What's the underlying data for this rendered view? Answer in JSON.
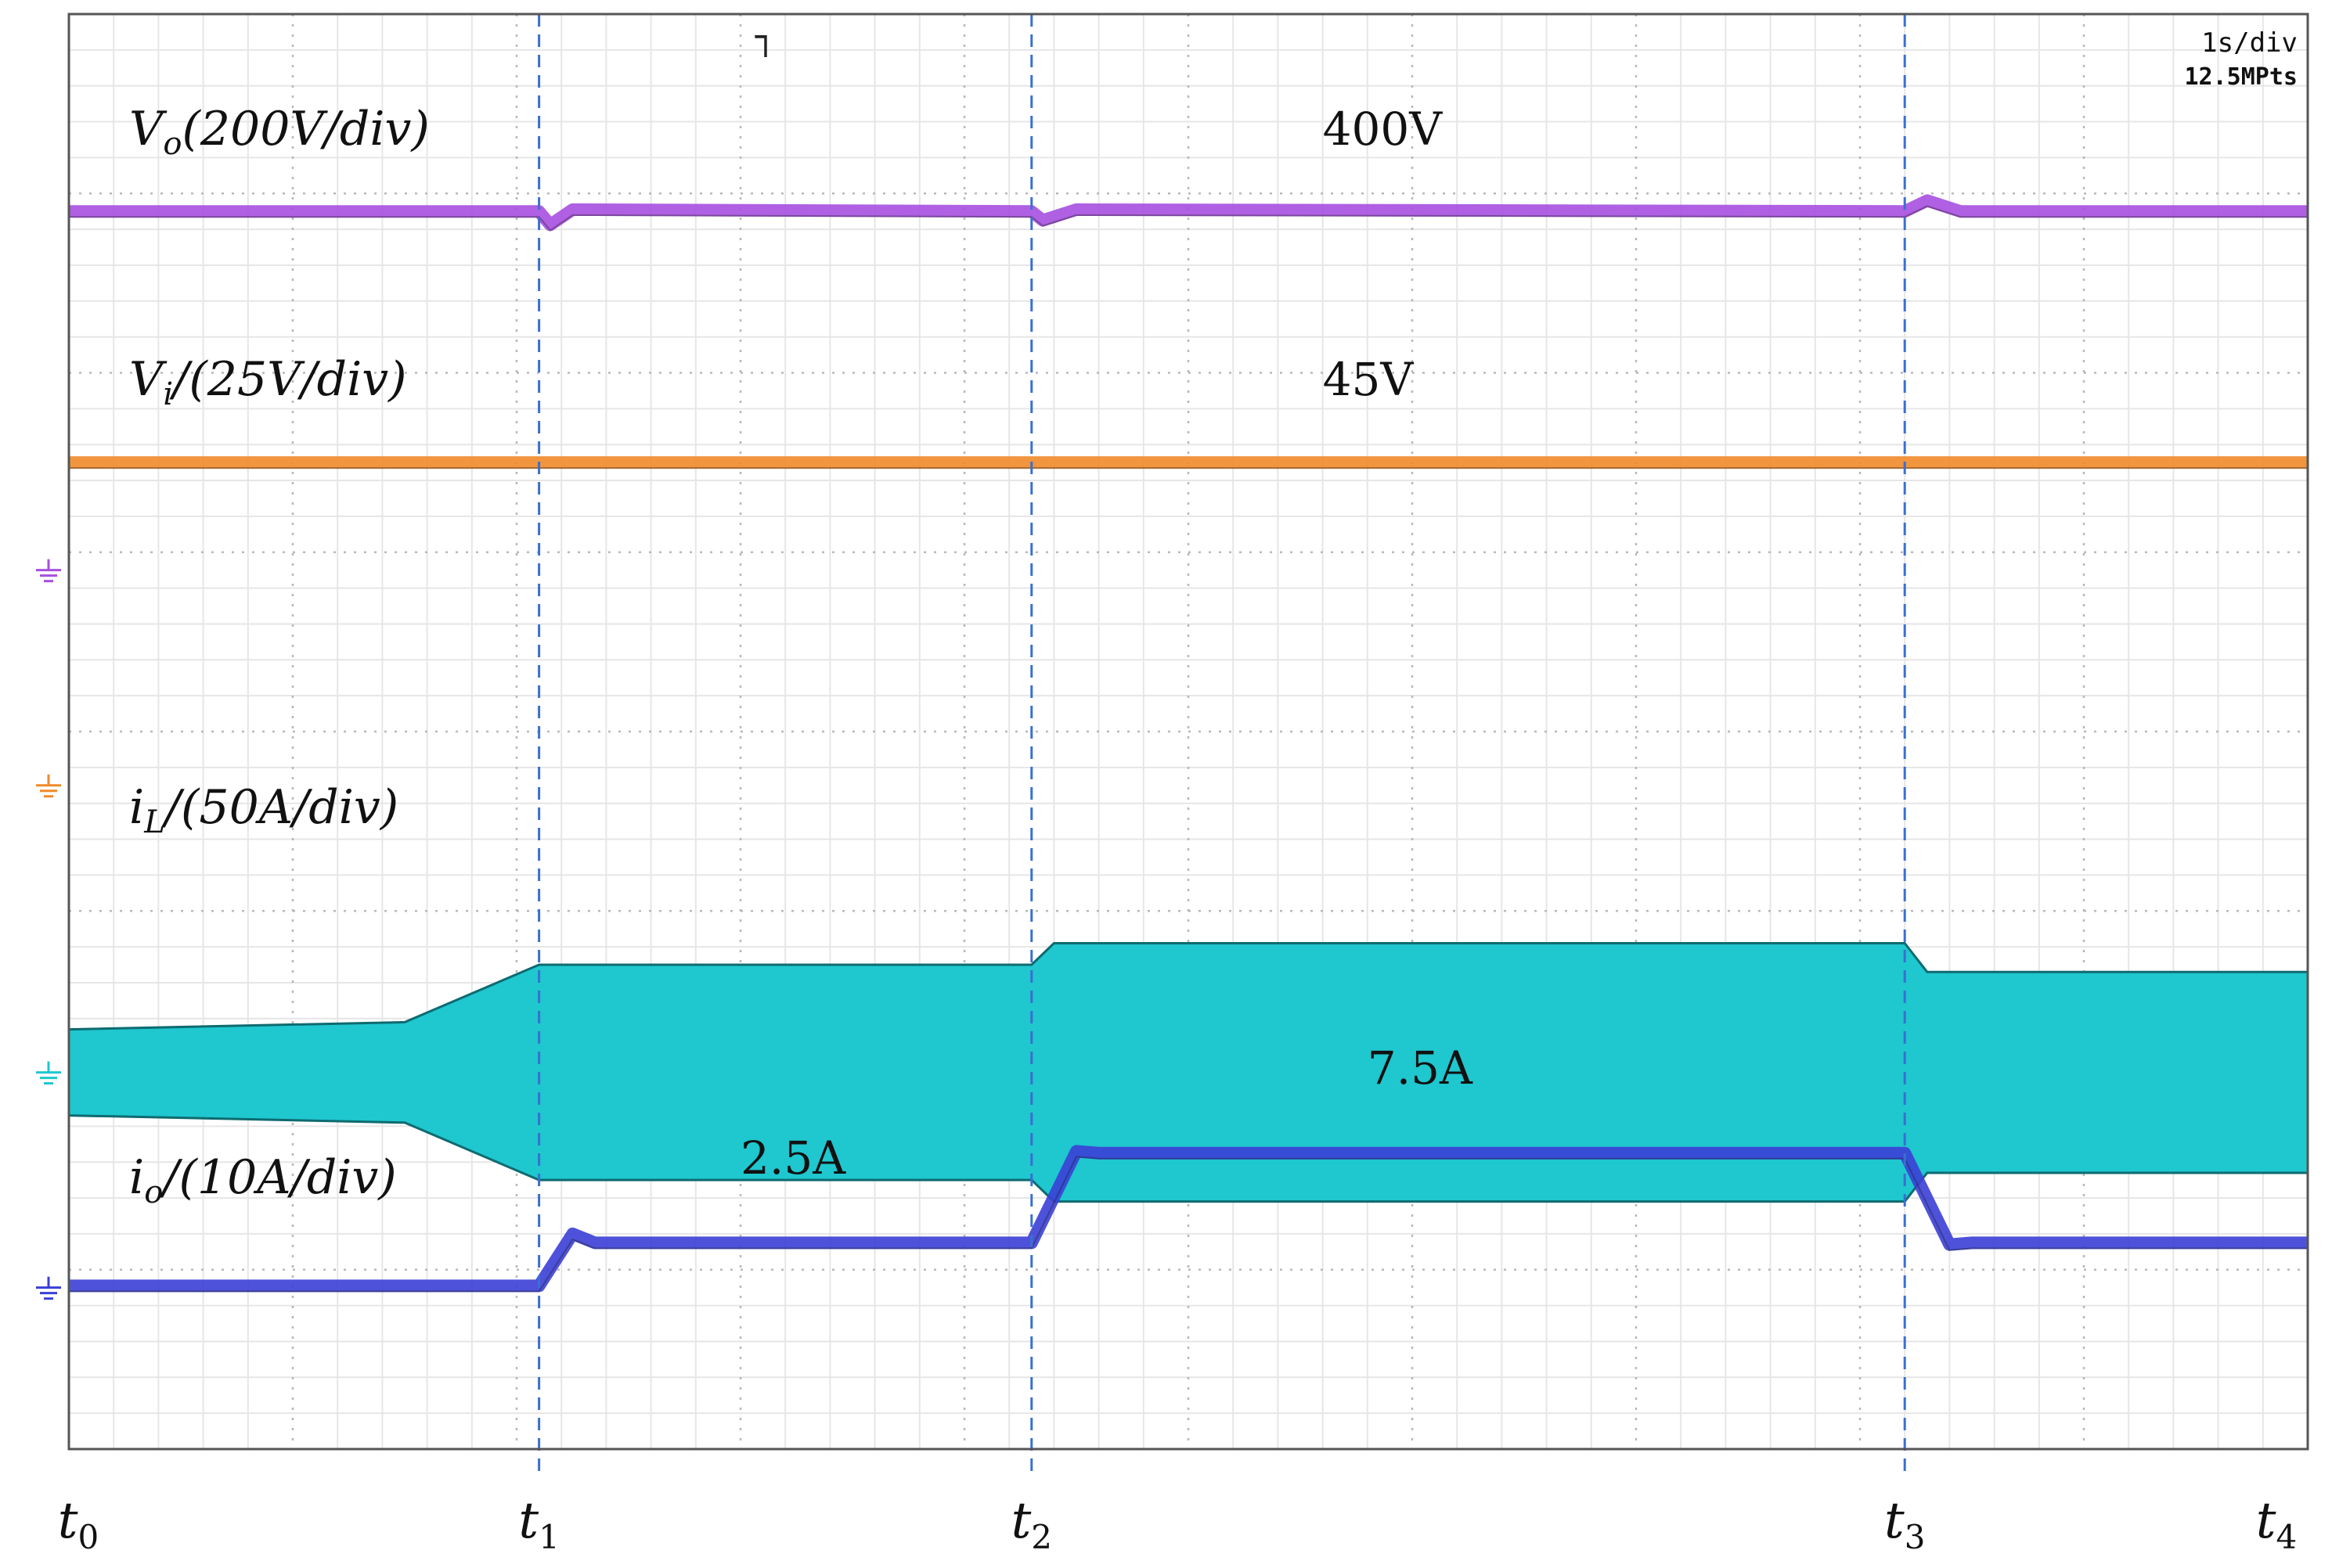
{
  "header": {
    "timebase": "1s/div",
    "record_length": "12.5MPts"
  },
  "colors": {
    "grid_major": "#b8b8b8",
    "grid_minor": "#e6e6e6",
    "marker": "#3a6fd0",
    "frame": "#555555"
  },
  "chart_data": {
    "type": "line",
    "x_unit": "s",
    "xlim": [
      0,
      10
    ],
    "grid": true,
    "time_markers": [
      {
        "label": "t0",
        "main": "t",
        "sub": "0",
        "t": 0.0
      },
      {
        "label": "t1",
        "main": "t",
        "sub": "1",
        "t": 2.1
      },
      {
        "label": "t2",
        "main": "t",
        "sub": "2",
        "t": 4.3
      },
      {
        "label": "t3",
        "main": "t",
        "sub": "3",
        "t": 8.2
      },
      {
        "label": "t4",
        "main": "t",
        "sub": "4",
        "t": 10.0
      }
    ],
    "series": [
      {
        "id": "vo",
        "label_main": "V",
        "label_sub": "o",
        "label_rest": "(200V/div)",
        "color": "#a64fe0",
        "ground_div": 4.9,
        "unit": "V",
        "scale_per_div": 200,
        "points": [
          [
            0,
            400
          ],
          [
            2.1,
            400
          ],
          [
            2.15,
            385
          ],
          [
            2.25,
            402
          ],
          [
            4.3,
            400
          ],
          [
            4.35,
            390
          ],
          [
            4.5,
            402
          ],
          [
            8.2,
            400
          ],
          [
            8.3,
            412
          ],
          [
            8.45,
            400
          ],
          [
            10,
            400
          ]
        ],
        "annotations": [
          {
            "text": "400V",
            "t": 5.6
          }
        ]
      },
      {
        "id": "vi",
        "label_main": "V",
        "label_sub": "i",
        "label_rest": "/(25V/div)",
        "color": "#f08a2a",
        "ground_div": 3.7,
        "unit": "V",
        "scale_per_div": 25,
        "points": [
          [
            0,
            45
          ],
          [
            2.1,
            45
          ],
          [
            10,
            45
          ]
        ],
        "annotations": [
          {
            "text": "45V",
            "t": 5.6
          }
        ]
      },
      {
        "id": "il",
        "label_main": "i",
        "label_sub": "L",
        "label_rest": "/(50A/div)",
        "color": "#1fc7cf",
        "ground_div": 2.1,
        "unit": "A",
        "scale_per_div": 50,
        "envelope": [
          [
            0,
            12
          ],
          [
            1.5,
            14
          ],
          [
            2.1,
            30
          ],
          [
            4.3,
            30
          ],
          [
            4.4,
            36
          ],
          [
            8.2,
            36
          ],
          [
            8.3,
            28
          ],
          [
            10,
            28
          ]
        ],
        "annotations": []
      },
      {
        "id": "io",
        "label_main": "i",
        "label_sub": "o",
        "label_rest": "/(10A/div)",
        "color": "#3b3fd6",
        "ground_div": 0.9,
        "unit": "A",
        "scale_per_div": 10,
        "points": [
          [
            0,
            0.1
          ],
          [
            2.1,
            0.1
          ],
          [
            2.25,
            3.0
          ],
          [
            2.35,
            2.5
          ],
          [
            4.3,
            2.5
          ],
          [
            4.5,
            7.6
          ],
          [
            4.6,
            7.5
          ],
          [
            8.2,
            7.5
          ],
          [
            8.4,
            2.4
          ],
          [
            8.5,
            2.5
          ],
          [
            10,
            2.5
          ]
        ],
        "annotations": [
          {
            "text": "2.5A",
            "t": 3.0
          },
          {
            "text": "7.5A",
            "t": 5.8
          }
        ]
      }
    ]
  }
}
